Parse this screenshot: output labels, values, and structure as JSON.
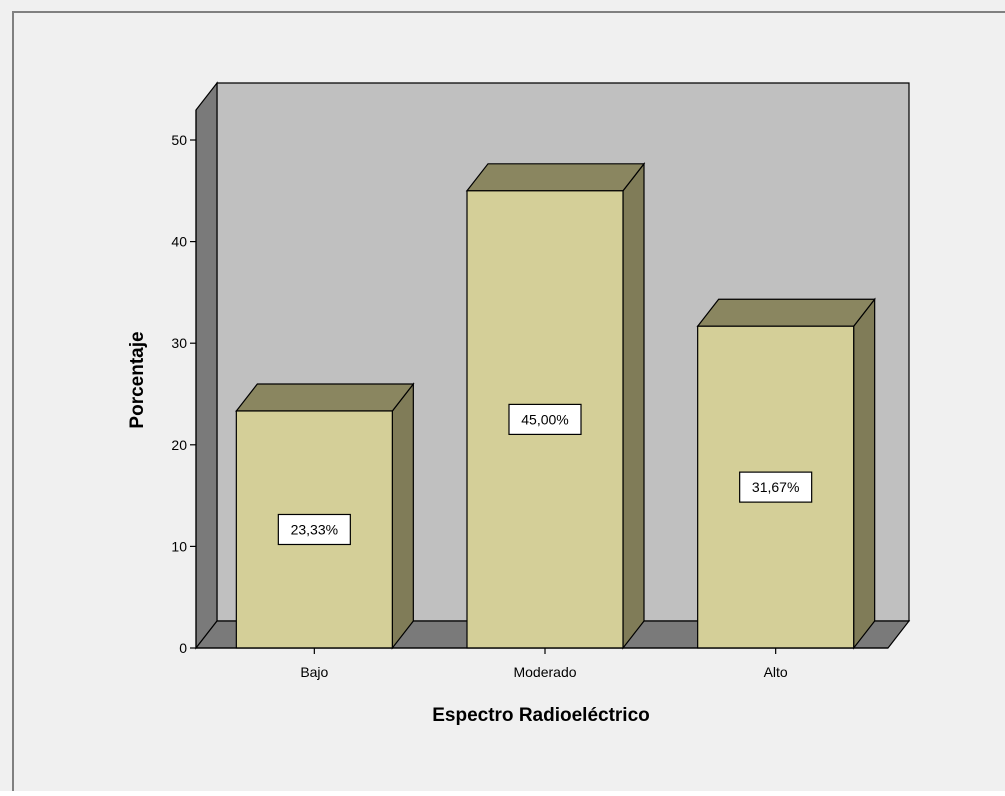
{
  "colors": {
    "page_background": "#f0f0f0",
    "frame_border": "#808080",
    "back_wall": "#c0c0c0",
    "side_wall": "#7a7a7a",
    "floor": "#7a7a7a",
    "bar_front": "#d4cf98",
    "bar_top": "#8a8660",
    "bar_side": "#807c58",
    "outline": "#000000",
    "label_box": "#ffffff"
  },
  "chart_data": {
    "type": "bar",
    "style": "3d",
    "title": "",
    "xlabel": "Espectro Radioeléctrico",
    "ylabel": "Porcentaje",
    "categories": [
      "Bajo",
      "Moderado",
      "Alto"
    ],
    "values": [
      23.33,
      45.0,
      31.67
    ],
    "data_labels": [
      "23,33%",
      "45,00%",
      "31,67%"
    ],
    "ylim": [
      0,
      50
    ],
    "yticks": [
      0,
      10,
      20,
      30,
      40,
      50
    ],
    "grid": false,
    "legend": "none"
  }
}
